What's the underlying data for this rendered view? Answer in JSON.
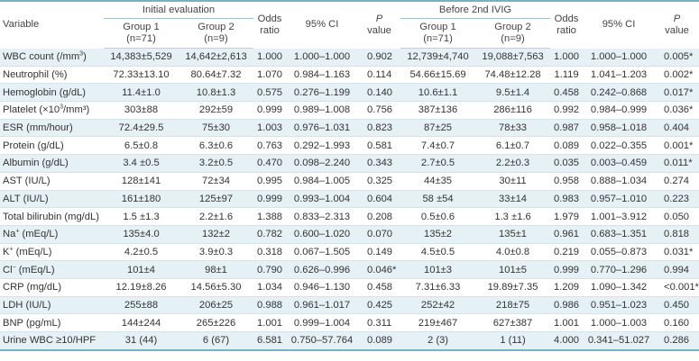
{
  "header": {
    "variable": "Variable",
    "initial_evaluation": "Initial evaluation",
    "before_2nd_ivig": "Before 2nd IVIG",
    "group1_label": "Group 1",
    "group1_n": "(n=71)",
    "group2_label": "Group 2",
    "group2_n": "(n=9)",
    "odds_ratio_l1": "Odds",
    "odds_ratio_l2": "ratio",
    "ci": "95% CI",
    "p_l1": "P",
    "p_l2": "value"
  },
  "rows": [
    {
      "variable": "WBC count (/mm",
      "sup": "3",
      "variable_end": ")",
      "g1": "14,383±5,529",
      "g2": "14,642±2,613",
      "or": "1.000",
      "ci": "1.000–1.000",
      "p": "0.902",
      "g1b": "12,739±4,740",
      "g2b": "19,088±7,563",
      "orb": "1.000",
      "cib": "1.000–1.000",
      "pb": "0.005*"
    },
    {
      "variable": "Neutrophil (%)",
      "sup": "",
      "variable_end": "",
      "g1": "72.33±13.10",
      "g2": "80.64±7.32",
      "or": "1.070",
      "ci": "0.984–1.163",
      "p": "0.114",
      "g1b": "54.66±15.69",
      "g2b": "74.48±12.28",
      "orb": "1.119",
      "cib": "1.041–1.203",
      "pb": "0.002*"
    },
    {
      "variable": "Hemoglobin (g/dL)",
      "sup": "",
      "variable_end": "",
      "g1": "11.4±1.0",
      "g2": "10.8±1.3",
      "or": "0.575",
      "ci": "0.276–1.199",
      "p": "0.140",
      "g1b": "10.6±1.1",
      "g2b": "9.5±1.4",
      "orb": "0.458",
      "cib": "0.242–0.868",
      "pb": "0.017*"
    },
    {
      "variable": "Platelet (×10",
      "sup": "3",
      "variable_end": "/mm³)",
      "g1": "303±88",
      "g2": "292±59",
      "or": "0.999",
      "ci": "0.989–1.008",
      "p": "0.756",
      "g1b": "387±136",
      "g2b": "286±116",
      "orb": "0.992",
      "cib": "0.984–0.999",
      "pb": "0.036*"
    },
    {
      "variable": "ESR (mm/hour)",
      "sup": "",
      "variable_end": "",
      "g1": "72.4±29.5",
      "g2": "75±30",
      "or": "1.003",
      "ci": "0.976–1.031",
      "p": "0.823",
      "g1b": "87±25",
      "g2b": "78±33",
      "orb": "0.987",
      "cib": "0.958–1.018",
      "pb": "0.404"
    },
    {
      "variable": "Protein (g/dL)",
      "sup": "",
      "variable_end": "",
      "g1": "6.5±0.8",
      "g2": "6.3±0.6",
      "or": "0.763",
      "ci": "0.292–1.993",
      "p": "0.581",
      "g1b": "7.4±0.7",
      "g2b": "6.1±0.7",
      "orb": "0.089",
      "cib": "0.022–0.355",
      "pb": "0.001*"
    },
    {
      "variable": "Albumin (g/dL)",
      "sup": "",
      "variable_end": "",
      "g1": "3.4 ±0.5",
      "g2": "3.2±0.5",
      "or": "0.470",
      "ci": "0.098–2.240",
      "p": "0.343",
      "g1b": "2.7±0.5",
      "g2b": "2.2±0.3",
      "orb": "0.035",
      "cib": "0.003–0.459",
      "pb": "0.011*"
    },
    {
      "variable": "AST (IU/L)",
      "sup": "",
      "variable_end": "",
      "g1": "128±141",
      "g2": "72±34",
      "or": "0.995",
      "ci": "0.984–1.005",
      "p": "0.325",
      "g1b": "44±35",
      "g2b": "30±11",
      "orb": "0.958",
      "cib": "0.888–1.034",
      "pb": "0.274"
    },
    {
      "variable": "ALT (IU/L)",
      "sup": "",
      "variable_end": "",
      "g1": "161±180",
      "g2": "125±97",
      "or": "0.999",
      "ci": "0.993–1.004",
      "p": "0.604",
      "g1b": "58 ±54",
      "g2b": "33±14",
      "orb": "0.983",
      "cib": "0.957–1.010",
      "pb": "0.223"
    },
    {
      "variable": "Total bilirubin (mg/dL)",
      "sup": "",
      "variable_end": "",
      "g1": "1.5 ±1.3",
      "g2": "2.2±1.6",
      "or": "1.388",
      "ci": "0.833–2.313",
      "p": "0.208",
      "g1b": "0.5±0.6",
      "g2b": "1.3 ±1.6",
      "orb": "1.979",
      "cib": "1.001–3.912",
      "pb": "0.050"
    },
    {
      "variable": "Na",
      "sup": "+",
      "variable_end": " (mEq/L)",
      "g1": "135±4.0",
      "g2": "132±2",
      "or": "0.782",
      "ci": "0.600–1.020",
      "p": "0.070",
      "g1b": "135±2",
      "g2b": "135±1",
      "orb": "0.961",
      "cib": "0.683–1.351",
      "pb": "0.818"
    },
    {
      "variable": "K",
      "sup": "+",
      "variable_end": " (mEq/L)",
      "g1": "4.2±0.5",
      "g2": "3.9±0.3",
      "or": "0.318",
      "ci": "0.067–1.505",
      "p": "0.149",
      "g1b": "4.5±0.5",
      "g2b": "4.0±0.8",
      "orb": "0.219",
      "cib": "0.055–0.873",
      "pb": "0.031*"
    },
    {
      "variable": "Cl",
      "sup": "−",
      "variable_end": " (mEq/L)",
      "g1": "101±4",
      "g2": "98±1",
      "or": "0.790",
      "ci": "0.626–0.996",
      "p": "0.046*",
      "g1b": "101±3",
      "g2b": "101±5",
      "orb": "0.999",
      "cib": "0.770–1.296",
      "pb": "0.994"
    },
    {
      "variable": "CRP (mg/dL)",
      "sup": "",
      "variable_end": "",
      "g1": "12.19±8.26",
      "g2": "14.56±5.30",
      "or": "1.034",
      "ci": "0.946–1.130",
      "p": "0.458",
      "g1b": "7.31±6.33",
      "g2b": "19.89±7.35",
      "orb": "1.209",
      "cib": "1.090–1.342",
      "pb": "<0.001*"
    },
    {
      "variable": "LDH (IU/L)",
      "sup": "",
      "variable_end": "",
      "g1": "255±88",
      "g2": "206±25",
      "or": "0.988",
      "ci": "0.961–1.017",
      "p": "0.425",
      "g1b": "252±42",
      "g2b": "218±75",
      "orb": "0.986",
      "cib": "0.951–1.023",
      "pb": "0.450"
    },
    {
      "variable": "BNP (pg/mL)",
      "sup": "",
      "variable_end": "",
      "g1": "144±244",
      "g2": "265±226",
      "or": "1.001",
      "ci": "0.999–1.004",
      "p": "0.311",
      "g1b": "219±467",
      "g2b": "627±387",
      "orb": "1.001",
      "cib": "1.000–1.003",
      "pb": "0.160"
    },
    {
      "variable": "Urine WBC ≥10/HPF",
      "sup": "",
      "variable_end": "",
      "g1": "31 (44)",
      "g2": "6 (67)",
      "or": "6.581",
      "ci": "0.750–57.764",
      "p": "0.089",
      "g1b": "2 (3)",
      "g2b": "1 (11)",
      "orb": "4.000",
      "cib": "0.341–51.027",
      "pb": "0.286"
    }
  ]
}
